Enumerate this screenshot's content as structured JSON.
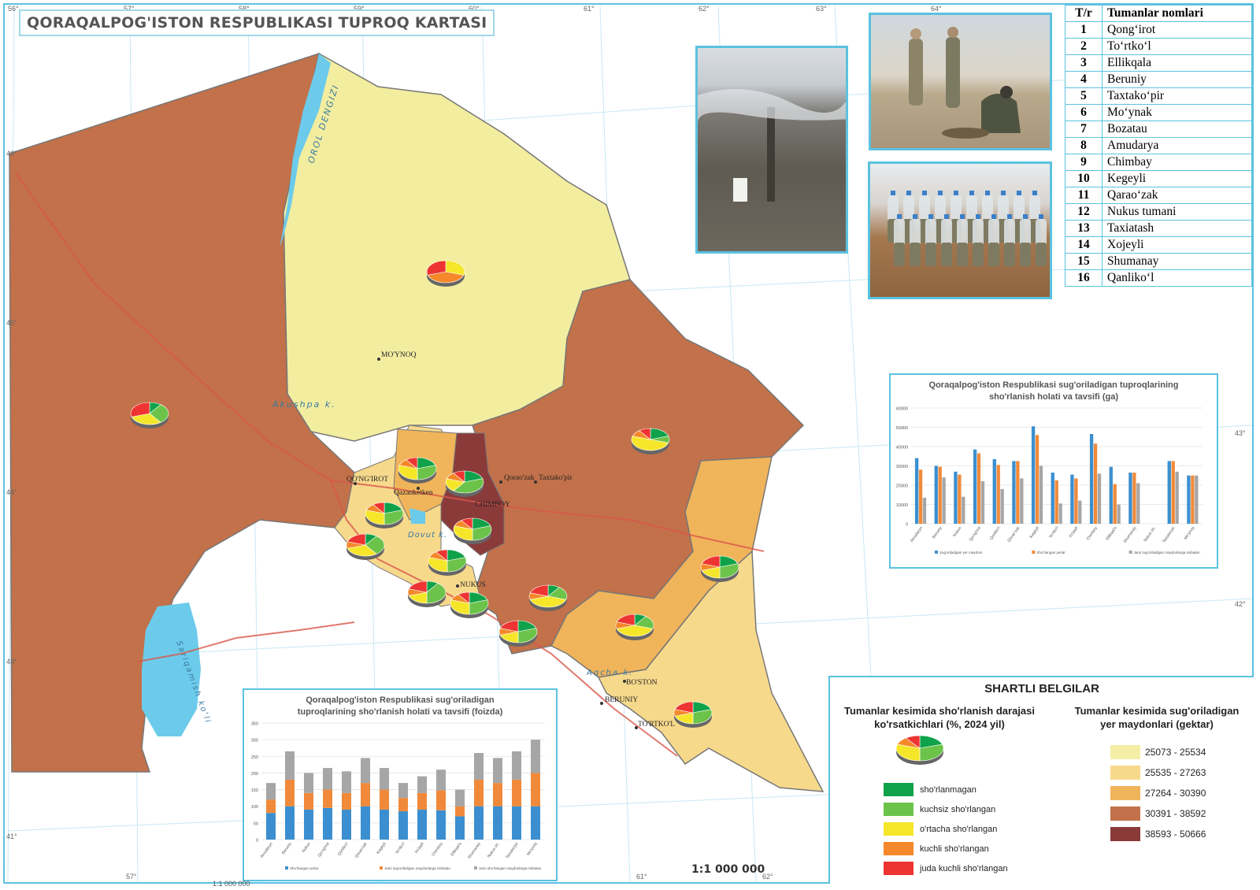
{
  "title": "QORAQALPOG'ISTON RESPUBLIKASI TUPROQ KARTASI",
  "scale": "1:1 000 000",
  "scale_small": "1:1 000 000",
  "colors": {
    "region_lightest": "#f3eda0",
    "region_light": "#f7d98c",
    "region_mid": "#f0b45a",
    "region_brown": "#c2714a",
    "region_dark": "#8b3a3a",
    "water": "#6ccbeb",
    "border": "#5bc2e0",
    "sl_none": "#0fa24a",
    "sl_weak": "#6cc34a",
    "sl_mid": "#f5e62a",
    "sl_strong": "#f5882a",
    "sl_very": "#ee3432",
    "bar_blue": "#3b8fd0",
    "bar_orange": "#f08a3a",
    "bar_gray": "#a6a6a6"
  },
  "graticule": {
    "top": [
      "56°",
      "57°",
      "58°",
      "59°",
      "60°",
      "61°",
      "62°",
      "63°",
      "64°"
    ],
    "bottom": [
      "57°",
      "61°",
      "62°"
    ],
    "right": [
      "43°",
      "42°"
    ],
    "left": [
      "46°",
      "45°",
      "44°",
      "43°",
      "41°"
    ]
  },
  "map_labels": {
    "sea": "OROL DENGIZI",
    "akushpa": "Akushpa k.",
    "sariqamish": "Sariqamish ko'li",
    "dovut": "Dovut k.",
    "aqcha": "Aqcha k.",
    "moynoq": "MO'YNOQ",
    "qongirot": "QO'NG'IROT",
    "qazanketken": "Qazanketken",
    "qaraozak": "Qorao'zak",
    "taxtakopir": "Taxtako'pir",
    "chimboy": "CHIMBOY",
    "nukus": "NUKUS",
    "boston": "BO'STON",
    "beruniy": "BERUNIY",
    "tortkol": "TO'RTKO'L"
  },
  "districts": {
    "header_num": "T/r",
    "header_name": "Tumanlar nomlari",
    "rows": [
      {
        "n": "1",
        "name": "Qong‘irot"
      },
      {
        "n": "2",
        "name": "To‘rtko‘l"
      },
      {
        "n": "3",
        "name": "Ellikqala"
      },
      {
        "n": "4",
        "name": "Beruniy"
      },
      {
        "n": "5",
        "name": "Taxtako‘pir"
      },
      {
        "n": "6",
        "name": "Mo‘ynak"
      },
      {
        "n": "7",
        "name": "Bozatau"
      },
      {
        "n": "8",
        "name": "Amudarya"
      },
      {
        "n": "9",
        "name": "Chimbay"
      },
      {
        "n": "10",
        "name": "Kegeyli"
      },
      {
        "n": "11",
        "name": "Qarao‘zak"
      },
      {
        "n": "12",
        "name": "Nukus tumani"
      },
      {
        "n": "13",
        "name": "Taxiatash"
      },
      {
        "n": "14",
        "name": "Xojeyli"
      },
      {
        "n": "15",
        "name": "Shumanay"
      },
      {
        "n": "16",
        "name": "Qanliko‘l"
      }
    ]
  },
  "chart_data": [
    {
      "type": "bar",
      "title": "Qoraqalpog'iston Respublikasi sug'oriladigan tuproqlarining sho'rlanish holati va tavsifi (ga)",
      "categories": [
        "Amudaryo",
        "Beruniy",
        "Nukus",
        "Qo'ng'irot",
        "Qonliko'l",
        "Qorao'zak",
        "Kegeyli",
        "To'rtko'l",
        "Xo'jayli",
        "Chimboy",
        "Ellikqal'a",
        "Shumanay",
        "Nukus sh.",
        "Taxtako'pir",
        "Mo'ynoq"
      ],
      "yticks": [
        "0",
        "10000",
        "20000",
        "30000",
        "40000",
        "50000",
        "60000"
      ],
      "ylim": [
        0,
        60000
      ],
      "series": [
        {
          "name": "Sug'oriladigan yer maydoni",
          "color": "#3b8fd0",
          "values": [
            34000,
            30000,
            27000,
            38500,
            33500,
            32500,
            50500,
            26500,
            25500,
            46500,
            29500,
            26500,
            0,
            32500,
            25000
          ]
        },
        {
          "name": "Sho'rlangan yerlar",
          "color": "#f08a3a",
          "values": [
            28000,
            29500,
            25500,
            36500,
            30500,
            32500,
            46000,
            22500,
            23500,
            41500,
            20500,
            26500,
            0,
            32500,
            25000
          ]
        },
        {
          "name": "Jami sug'oriladigan maydonlarga nisbatan",
          "color": "#a6a6a6",
          "values": [
            13500,
            24000,
            14000,
            22000,
            18000,
            23500,
            30000,
            10500,
            12000,
            26000,
            10000,
            21000,
            0,
            27000,
            25000
          ]
        }
      ]
    },
    {
      "type": "bar",
      "title": "Qoraqalpog'iston Respublikasi sug'oriladigan tuproqlarining sho'rlanish holati va tavsifi (foizda)",
      "stacked": true,
      "categories": [
        "Amudaryo",
        "Beruniy",
        "Nukus",
        "Qo'ng'irot",
        "Qonliko'l",
        "Qorao'zak",
        "Kegeyli",
        "To'rtko'l",
        "Xo'jayli",
        "Chimboy",
        "Ellikqal'a",
        "Shumanay",
        "Nukus sh.",
        "Taxtako'pir",
        "Mo'ynoq"
      ],
      "yticks": [
        "0",
        "50",
        "100",
        "150",
        "200",
        "250",
        "300",
        "350"
      ],
      "ylim": [
        0,
        350
      ],
      "series": [
        {
          "name": "Sho'rlangan yerlar",
          "color": "#3b8fd0",
          "values": [
            80,
            100,
            90,
            95,
            90,
            100,
            90,
            85,
            90,
            88,
            70,
            100,
            100,
            100,
            100
          ]
        },
        {
          "name": "Jami sug'oriladigan maydonlarga nisbatan",
          "color": "#f08a3a",
          "values": [
            40,
            80,
            50,
            55,
            50,
            70,
            60,
            40,
            50,
            60,
            30,
            80,
            70,
            80,
            100
          ]
        },
        {
          "name": "Jami sho'rlangan maydonlarga nisbatan",
          "color": "#a6a6a6",
          "values": [
            50,
            85,
            60,
            65,
            65,
            75,
            65,
            45,
            50,
            62,
            50,
            80,
            75,
            85,
            100
          ]
        }
      ]
    }
  ],
  "legend": {
    "title": "SHARTLI BELGILAR",
    "left_heading_1": "Tumanlar kesimida sho'rlanish darajasi",
    "left_heading_2": "ko'rsatkichlari (%, 2024 yil)",
    "right_heading_1": "Tumanlar kesimida sug'oriladigan",
    "right_heading_2": "yer maydonlari (gektar)",
    "salinity": [
      {
        "label": "sho'rlanmagan",
        "color": "#0fa24a"
      },
      {
        "label": "kuchsiz sho'rlangan",
        "color": "#6cc34a"
      },
      {
        "label": "o'rtacha sho'rlangan",
        "color": "#f5e62a"
      },
      {
        "label": "kuchli sho'rlangan",
        "color": "#f5882a"
      },
      {
        "label": "juda kuchli sho'rlangan",
        "color": "#ee3432"
      }
    ],
    "area": [
      {
        "label": "25073 - 25534",
        "color": "#f5eea5"
      },
      {
        "label": "25535 - 27263",
        "color": "#f7d98c"
      },
      {
        "label": "27264 - 30390",
        "color": "#f0b45a"
      },
      {
        "label": "30391 - 38592",
        "color": "#c2714a"
      },
      {
        "label": "38593 - 50666",
        "color": "#8b3a3a"
      }
    ]
  }
}
